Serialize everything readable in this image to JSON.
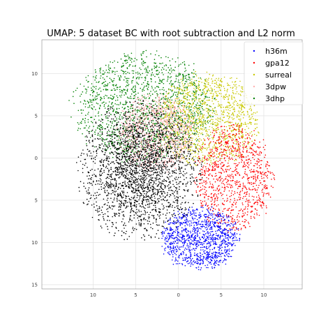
{
  "chart_data": {
    "type": "scatter",
    "title": "UMAP: 5 dataset BC with root subtraction and L2 norm",
    "xlabel": "",
    "ylabel": "",
    "xlim": [
      -16,
      14.5
    ],
    "ylim": [
      -15.5,
      14
    ],
    "xticks": [
      {
        "value": -10,
        "label": "10"
      },
      {
        "value": -5,
        "label": "5"
      },
      {
        "value": 0,
        "label": "0"
      },
      {
        "value": 5,
        "label": "5"
      },
      {
        "value": 10,
        "label": "10"
      }
    ],
    "yticks": [
      {
        "value": 10,
        "label": "10"
      },
      {
        "value": 5,
        "label": "5"
      },
      {
        "value": 0,
        "label": "0"
      },
      {
        "value": -5,
        "label": "5"
      },
      {
        "value": -10,
        "label": "10"
      },
      {
        "value": -15,
        "label": "15"
      }
    ],
    "grid": true,
    "legend_position": "top-right",
    "series": [
      {
        "name": "h36m",
        "color": "#0000ff",
        "region_center": [
          2.5,
          -9.5
        ],
        "region_radius": [
          5.0,
          4.0
        ]
      },
      {
        "name": "gpa12",
        "color": "#ff0000",
        "region_center": [
          6.5,
          -2.5
        ],
        "region_radius": [
          5.0,
          7.0
        ]
      },
      {
        "name": "surreal",
        "color": "#c8c800",
        "region_center": [
          3.5,
          4.5
        ],
        "region_radius": [
          6.5,
          6.0
        ]
      },
      {
        "name": "3dpw",
        "color": "#ffb0b0",
        "region_center": [
          -2.5,
          3.0
        ],
        "region_radius": [
          5.0,
          5.0
        ]
      },
      {
        "name": "3dhp",
        "color": "#008000",
        "region_center": [
          -4.0,
          6.0
        ],
        "region_radius": [
          9.0,
          7.0
        ]
      }
    ]
  }
}
